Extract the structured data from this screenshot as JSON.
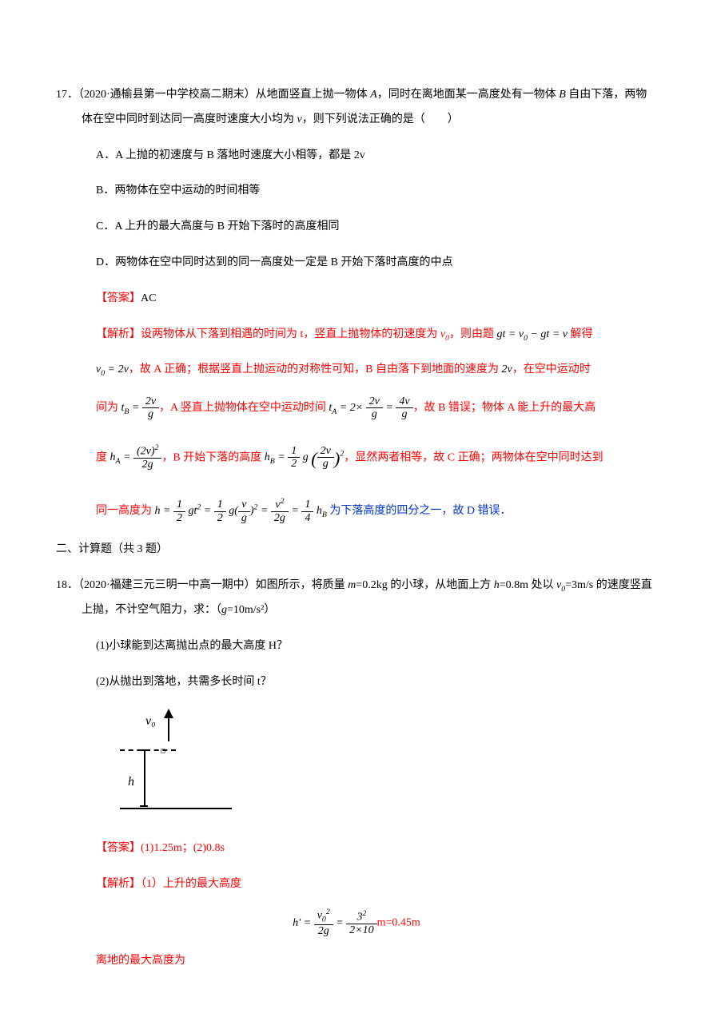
{
  "colors": {
    "answer": "#ff0000",
    "highlight": "#0033cc",
    "text": "#000000",
    "bg": "#ffffff"
  },
  "typography": {
    "body_fontsize_pt": 10.5,
    "line_height": 2.2,
    "font": "SimSun"
  },
  "q17": {
    "number": "17．",
    "source": "（2020·通榆县第一中学校高二期末）",
    "stem_a": "从地面竖直上抛一物体 ",
    "stem_b": "，同时在离地面某一高度处有一物体 ",
    "stem_c": " 自由下落，两物体在空中同时到达同一高度时速度大小均为 ",
    "stem_d": "，则下列说法正确的是（　　）",
    "optA": "A．A 上抛的初速度与 B 落地时速度大小相等，都是 2v",
    "optB": "B．两物体在空中运动的时间相等",
    "optC": "C．A 上升的最大高度与 B 开始下落时的高度相同",
    "optD": "D．两物体在空中同时达到的同一高度处一定是 B 开始下落时高度的中点",
    "answer_label": "【答案】",
    "answer": "AC",
    "expl_label": "【解析】",
    "expl1a": "设两物体从下落到相遇的时间为 t，竖直上抛物体的初速度为 ",
    "expl1b": "，则由题 ",
    "expl1c": " 解得 ",
    "expl2a": "，故 A 正确；根据竖直上抛运动的对称性可知，B 自由落下到地面的速度为 ",
    "expl2b": "，在空中运动时",
    "expl3a": "间为 ",
    "expl3b": "，A 竖直上抛物体在空中运动时间 ",
    "expl3c": "，故 B 错误；物体 A 能上升的最大高",
    "expl4a": "度 ",
    "expl4b": "，B 开始下落的高度 ",
    "expl4c": "，显然两者相等，故 C 正确；",
    "expl4c2": "两物体在空中同时达到",
    "expl5a": "同一高度为 ",
    "expl5b": " 为下落高度的四分之一，故 D 错误．",
    "eq1": "gt = v₀ − gt = v",
    "eq2": "v₀ = 2v"
  },
  "section2": "二、计算题（共 3 题）",
  "q18": {
    "number": "18．",
    "source": "（2020·福建三元三明一中高一期中）",
    "stem1": "如图所示，将质量 ",
    "stem2": "=0.2kg 的小球，从地面上方 ",
    "stem3": "=0.8m 处以 ",
    "stem4": "=3m/s 的速度竖直上抛，不计空气阻力，求：（",
    "stem5": "=10m/s²）",
    "sub1": "(1)小球能到达离抛出点的最大高度 H？",
    "sub2": "(2)从抛出到落地，共需多长时间 t？",
    "diagram": {
      "v0": "v₀",
      "dot": "○",
      "h": "h"
    },
    "answer_label": "【答案】",
    "answer": "(1)1.25m；(2)0.8s",
    "expl_label": "【解析】",
    "expl1": "（1）上升的最大高度",
    "eq_suffix": "m=0.45m",
    "expl2": "离地的最大高度为"
  }
}
